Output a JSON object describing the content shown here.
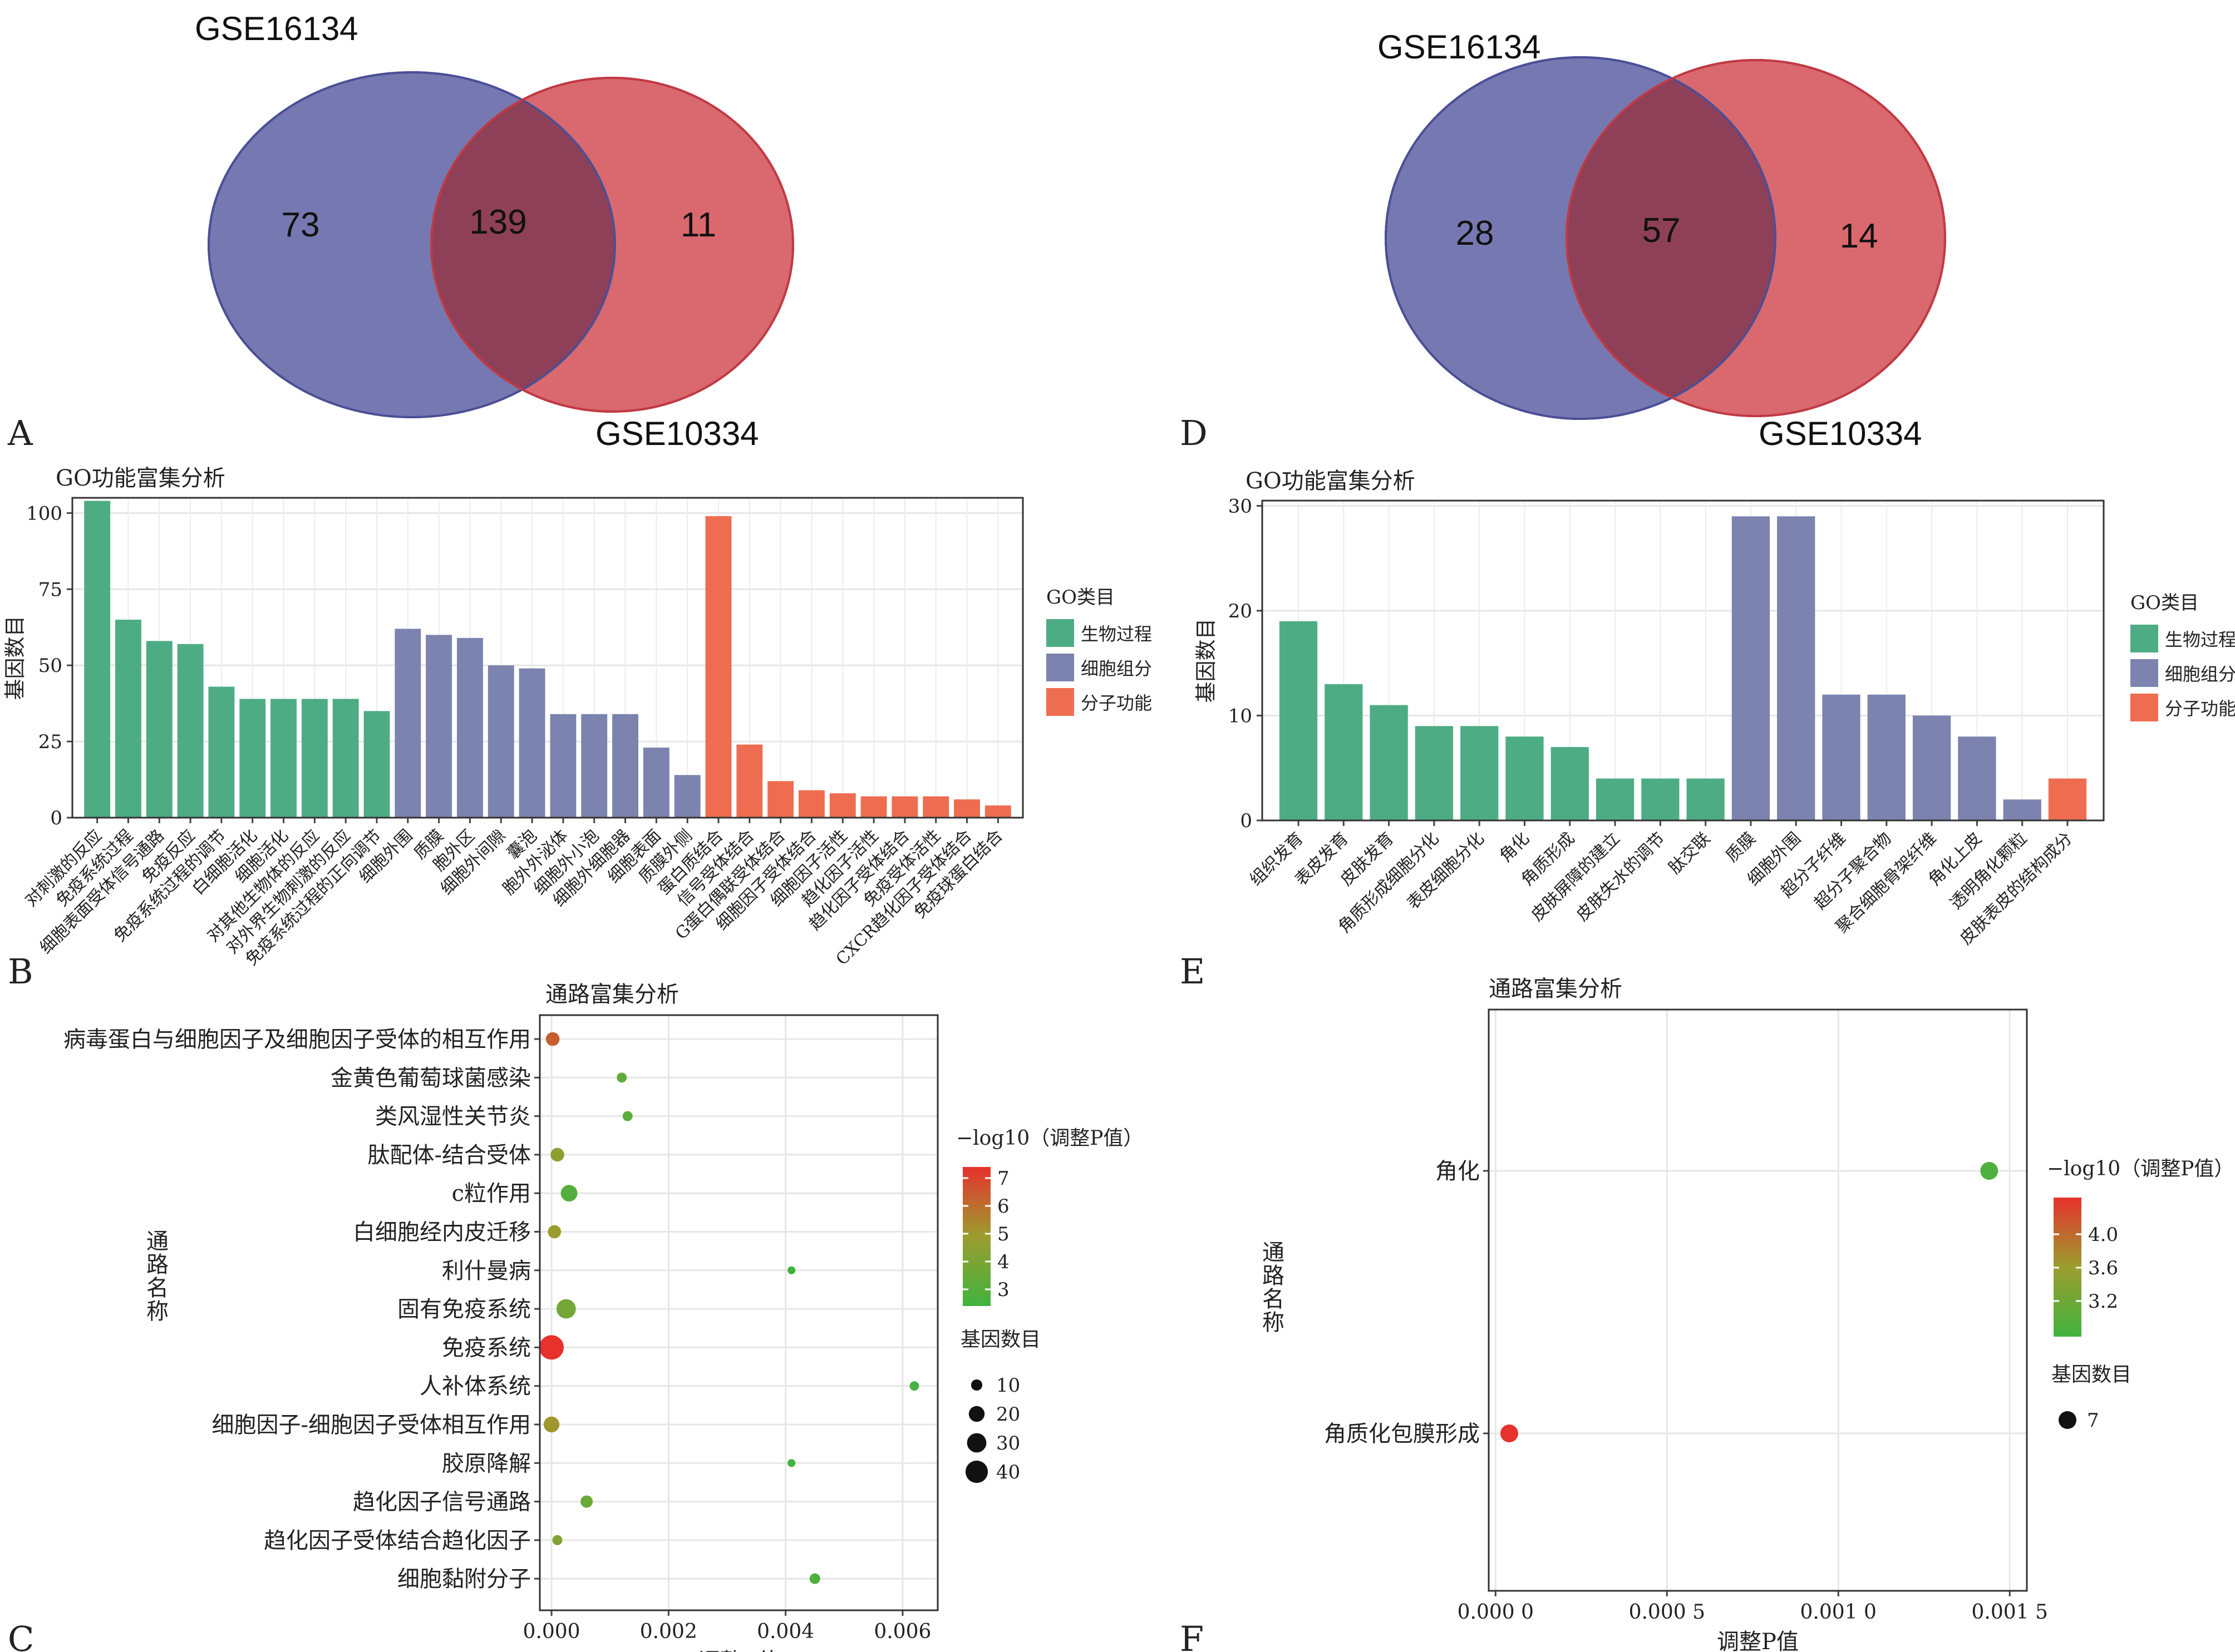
{
  "panels": {
    "A": "A",
    "B": "B",
    "C": "C",
    "D": "D",
    "E": "E",
    "F": "F"
  },
  "colors": {
    "venn_left": "#6f72ad",
    "venn_right": "#d76166",
    "venn_overlap": "#8d4058",
    "bio": "#4eac84",
    "cell": "#7b83ae",
    "mol": "#ee6d50",
    "low": "#41b33f",
    "mid": "#9b9d2e",
    "high": "#e6312d"
  },
  "chart_data": [
    {
      "panel": "A",
      "type": "venn",
      "sets": [
        "GSE16134",
        "GSE10334"
      ],
      "left_only": "73",
      "overlap": "139",
      "right_only": "11"
    },
    {
      "panel": "B",
      "type": "bar",
      "title": "GO功能富集分析",
      "ylabel": "基因数目",
      "ylim": [
        0,
        105
      ],
      "yticks": [
        0,
        25,
        50,
        75,
        100
      ],
      "legend_title": "GO类目",
      "legend": [
        "生物过程",
        "细胞组分",
        "分子功能"
      ],
      "legend_position": "right",
      "categories": [
        "对刺激的反应",
        "免疫系统过程",
        "细胞表面受体信号通路",
        "免疫反应",
        "免疫系统过程的调节",
        "白细胞活化",
        "细胞活化",
        "对其他生物体的反应",
        "对外界生物刺激的反应",
        "免疫系统过程的正向调节",
        "细胞外围",
        "质膜",
        "胞外区",
        "细胞外间隙",
        "囊泡",
        "胞外外泌体",
        "细胞外小泡",
        "细胞外细胞器",
        "细胞表面",
        "质膜外侧",
        "蛋白质结合",
        "信号受体结合",
        "G蛋白偶联受体结合",
        "细胞因子受体结合",
        "细胞因子活性",
        "趋化因子活性",
        "趋化因子受体结合",
        "免疫受体活性",
        "CXCR趋化因子受体结合",
        "免疫球蛋白结合"
      ],
      "values": [
        104,
        65,
        58,
        57,
        43,
        39,
        39,
        39,
        39,
        35,
        62,
        60,
        59,
        50,
        49,
        34,
        34,
        34,
        23,
        14,
        99,
        24,
        12,
        9,
        8,
        7,
        7,
        7,
        6,
        4
      ],
      "groups": [
        0,
        0,
        0,
        0,
        0,
        0,
        0,
        0,
        0,
        0,
        1,
        1,
        1,
        1,
        1,
        1,
        1,
        1,
        1,
        1,
        2,
        2,
        2,
        2,
        2,
        2,
        2,
        2,
        2,
        2
      ]
    },
    {
      "panel": "C",
      "type": "scatter",
      "title": "通路富集分析",
      "xlabel": "调整P值",
      "ylabel": "通路名称",
      "xlim": [
        -0.0002,
        0.0066
      ],
      "xticks": [
        "0.000",
        "0.002",
        "0.004",
        "0.006"
      ],
      "categories": [
        "病毒蛋白与细胞因子及细胞因子受体的相互作用",
        "金黄色葡萄球菌感染",
        "类风湿性关节炎",
        "肽配体-结合受体",
        "c粒作用",
        "白细胞经内皮迁移",
        "利什曼病",
        "固有免疫系统",
        "免疫系统",
        "人补体系统",
        "细胞因子-细胞因子受体相互作用",
        "胶原降解",
        "趋化因子信号通路",
        "趋化因子受体结合趋化因子",
        "细胞黏附分子"
      ],
      "x": [
        2e-05,
        0.0012,
        0.0013,
        0.0001,
        0.0003,
        5e-05,
        0.0041,
        0.00025,
        0.0,
        0.0062,
        0.0,
        0.0041,
        0.0006,
        0.0001,
        0.0045
      ],
      "counts": [
        15,
        8,
        8,
        15,
        22,
        14,
        5,
        30,
        48,
        7,
        20,
        5,
        12,
        8,
        9
      ],
      "color_values": [
        6.2,
        3.3,
        3.2,
        4.4,
        3.0,
        4.8,
        2.5,
        3.8,
        7.2,
        2.6,
        5.0,
        2.5,
        3.6,
        4.2,
        2.9
      ],
      "color_title": "−log10（调整P值）",
      "color_ticks": [
        "7",
        "6",
        "5",
        "4",
        "3"
      ],
      "size_title": "基因数目",
      "size_ticks": [
        "10",
        "20",
        "30",
        "40"
      ]
    },
    {
      "panel": "D",
      "type": "venn",
      "sets": [
        "GSE16134",
        "GSE10334"
      ],
      "left_only": "28",
      "overlap": "57",
      "right_only": "14"
    },
    {
      "panel": "E",
      "type": "bar",
      "title": "GO功能富集分析",
      "ylabel": "基因数目",
      "ylim": [
        0,
        30.5
      ],
      "yticks": [
        0,
        10,
        20,
        30
      ],
      "legend_title": "GO类目",
      "legend": [
        "生物过程",
        "细胞组分",
        "分子功能"
      ],
      "legend_position": "right",
      "categories": [
        "组织发育",
        "表皮发育",
        "皮肤发育",
        "角质形成细胞分化",
        "表皮细胞分化",
        "角化",
        "角质形成",
        "皮肤屏障的建立",
        "皮肤失水的调节",
        "肽交联",
        "质膜",
        "细胞外围",
        "超分子纤维",
        "超分子聚合物",
        "聚合细胞骨架纤维",
        "角化上皮",
        "透明角化颗粒",
        "皮肤表皮的结构成分"
      ],
      "values": [
        19,
        13,
        11,
        9,
        9,
        8,
        7,
        4,
        4,
        4,
        29,
        29,
        12,
        12,
        10,
        8,
        2,
        4
      ],
      "groups": [
        0,
        0,
        0,
        0,
        0,
        0,
        0,
        0,
        0,
        0,
        1,
        1,
        1,
        1,
        1,
        1,
        1,
        2
      ]
    },
    {
      "panel": "F",
      "type": "scatter",
      "title": "通路富集分析",
      "xlabel": "调整P值",
      "ylabel": "通路名称",
      "xlim": [
        -2e-05,
        0.00155
      ],
      "xticks": [
        "0.000 0",
        "0.000 5",
        "0.001 0",
        "0.001 5"
      ],
      "categories": [
        "角化",
        "角质化包膜形成"
      ],
      "x": [
        0.00144,
        4e-05
      ],
      "counts": [
        7,
        7
      ],
      "color_values": [
        3.0,
        4.4
      ],
      "color_title": "−log10（调整P值）",
      "color_ticks": [
        "4.0",
        "3.6",
        "3.2"
      ],
      "size_title": "基因数目",
      "size_ticks": [
        "7"
      ]
    }
  ]
}
